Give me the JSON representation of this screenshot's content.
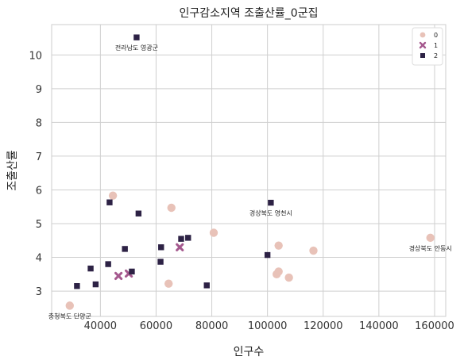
{
  "chart_data": {
    "type": "scatter",
    "title": "인구감소지역 조출산률_0군집",
    "xlabel": "인구수",
    "ylabel": "조출산률",
    "xlim": [
      22500,
      164000
    ],
    "ylim": [
      2.25,
      10.9
    ],
    "x_ticks": [
      40000,
      60000,
      80000,
      100000,
      120000,
      140000,
      160000
    ],
    "y_ticks": [
      3,
      4,
      5,
      6,
      7,
      8,
      9,
      10
    ],
    "grid": true,
    "legend_position": "top-right",
    "colors": {
      "0": "#e8c2b8",
      "1": "#a5598e",
      "2": "#2d2245"
    },
    "markers": {
      "0": "circle",
      "1": "x",
      "2": "square"
    },
    "series": [
      {
        "name": "0",
        "points": [
          {
            "x": 44500,
            "y": 5.83
          },
          {
            "x": 65500,
            "y": 5.47
          },
          {
            "x": 80700,
            "y": 4.73
          },
          {
            "x": 104000,
            "y": 4.35
          },
          {
            "x": 116500,
            "y": 4.2
          },
          {
            "x": 158500,
            "y": 4.58
          },
          {
            "x": 104000,
            "y": 3.58
          },
          {
            "x": 103300,
            "y": 3.5
          },
          {
            "x": 107700,
            "y": 3.4
          },
          {
            "x": 64500,
            "y": 3.22
          },
          {
            "x": 29000,
            "y": 2.57
          }
        ]
      },
      {
        "name": "1",
        "points": [
          {
            "x": 68500,
            "y": 4.3
          },
          {
            "x": 50200,
            "y": 3.52
          },
          {
            "x": 46500,
            "y": 3.45
          }
        ]
      },
      {
        "name": "2",
        "points": [
          {
            "x": 53000,
            "y": 10.52
          },
          {
            "x": 101200,
            "y": 5.62
          },
          {
            "x": 43300,
            "y": 5.63
          },
          {
            "x": 53700,
            "y": 5.3
          },
          {
            "x": 71500,
            "y": 4.58
          },
          {
            "x": 69000,
            "y": 4.55
          },
          {
            "x": 61800,
            "y": 4.3
          },
          {
            "x": 48800,
            "y": 4.25
          },
          {
            "x": 100000,
            "y": 4.07
          },
          {
            "x": 61600,
            "y": 3.87
          },
          {
            "x": 42800,
            "y": 3.8
          },
          {
            "x": 36500,
            "y": 3.67
          },
          {
            "x": 51300,
            "y": 3.58
          },
          {
            "x": 38300,
            "y": 3.2
          },
          {
            "x": 78200,
            "y": 3.17
          },
          {
            "x": 31600,
            "y": 3.15
          }
        ]
      }
    ],
    "annotations": [
      {
        "text": "전라남도 영광군",
        "x": 53000,
        "y": 10.52
      },
      {
        "text": "경상북도 영천시",
        "x": 101200,
        "y": 5.62
      },
      {
        "text": "경상북도 안동시",
        "x": 158500,
        "y": 4.58
      },
      {
        "text": "충청북도 단양군",
        "x": 29000,
        "y": 2.57
      }
    ]
  }
}
